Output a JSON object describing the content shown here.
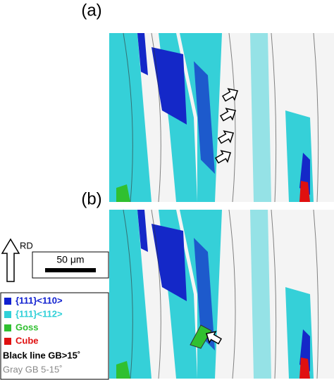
{
  "panels": [
    {
      "label": "(a)"
    },
    {
      "label": "(b)"
    }
  ],
  "direction": "RD",
  "scale_bar": "50 μm",
  "legend": [
    {
      "label": "{111}<110>",
      "color": "#1020d0"
    },
    {
      "label": "{111}<112>",
      "color": "#30d0d8"
    },
    {
      "label": "Goss",
      "color": "#30c030"
    },
    {
      "label": "Cube",
      "color": "#e01010"
    }
  ],
  "notes": [
    "Black line GB>15˚",
    "Gray GB 5-15˚"
  ]
}
